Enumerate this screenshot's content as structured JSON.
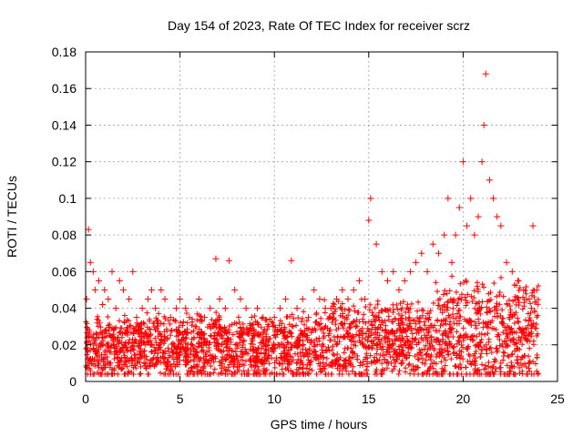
{
  "chart_data": {
    "type": "scatter",
    "title": "Day 154 of 2023, Rate Of TEC Index for receiver scrz",
    "xlabel": "GPS time / hours",
    "ylabel": "ROTI / TECUs",
    "xlim": [
      0,
      25
    ],
    "ylim": [
      0,
      0.18
    ],
    "xticks": [
      0,
      5,
      10,
      15,
      20,
      25
    ],
    "xtick_labels": [
      "0",
      "5",
      "10",
      "15",
      "20",
      "25"
    ],
    "yticks": [
      0,
      0.02,
      0.04,
      0.06,
      0.08,
      0.1,
      0.12,
      0.14,
      0.16,
      0.18
    ],
    "ytick_labels": [
      "0",
      "0.02",
      "0.04",
      "0.06",
      "0.08",
      "0.1",
      "0.12",
      "0.14",
      "0.16",
      "0.18"
    ],
    "grid": true,
    "marker": "+",
    "color": "#ff0000",
    "series": [
      {
        "name": "ROTI",
        "x": [
          0.05,
          0.15,
          0.25,
          0.4,
          0.5,
          0.7,
          0.9,
          1.0,
          1.2,
          1.4,
          1.6,
          1.8,
          2.0,
          2.3,
          2.5,
          2.7,
          3.0,
          3.3,
          3.5,
          3.7,
          4.0,
          4.2,
          4.5,
          4.8,
          5.0,
          5.3,
          5.5,
          5.8,
          6.0,
          6.3,
          6.6,
          6.9,
          7.1,
          7.4,
          7.6,
          7.9,
          8.2,
          8.5,
          8.8,
          9.1,
          9.4,
          9.7,
          10.0,
          10.3,
          10.6,
          10.9,
          11.2,
          11.5,
          11.8,
          12.1,
          12.4,
          12.7,
          13.0,
          13.3,
          13.6,
          13.9,
          14.2,
          14.5,
          14.8,
          15.0,
          15.1,
          15.4,
          15.7,
          16.0,
          16.3,
          16.6,
          16.9,
          17.2,
          17.5,
          17.8,
          18.1,
          18.4,
          18.7,
          19.0,
          19.2,
          19.4,
          19.6,
          19.8,
          20.0,
          20.2,
          20.4,
          20.6,
          20.8,
          21.0,
          21.1,
          21.2,
          21.4,
          21.6,
          21.8,
          22.0,
          22.3,
          22.6,
          22.9,
          23.2,
          23.5,
          23.7,
          23.9
        ],
        "y": [
          0.045,
          0.083,
          0.065,
          0.06,
          0.05,
          0.055,
          0.042,
          0.05,
          0.045,
          0.06,
          0.04,
          0.055,
          0.05,
          0.045,
          0.06,
          0.035,
          0.04,
          0.045,
          0.05,
          0.04,
          0.05,
          0.045,
          0.035,
          0.04,
          0.045,
          0.04,
          0.035,
          0.03,
          0.045,
          0.035,
          0.04,
          0.067,
          0.045,
          0.04,
          0.066,
          0.05,
          0.045,
          0.04,
          0.035,
          0.04,
          0.035,
          0.03,
          0.035,
          0.04,
          0.045,
          0.066,
          0.04,
          0.045,
          0.035,
          0.05,
          0.045,
          0.04,
          0.04,
          0.045,
          0.05,
          0.045,
          0.05,
          0.055,
          0.045,
          0.088,
          0.1,
          0.075,
          0.06,
          0.055,
          0.06,
          0.05,
          0.055,
          0.06,
          0.065,
          0.07,
          0.06,
          0.075,
          0.07,
          0.08,
          0.1,
          0.065,
          0.08,
          0.095,
          0.12,
          0.085,
          0.1,
          0.08,
          0.09,
          0.12,
          0.14,
          0.168,
          0.11,
          0.1,
          0.09,
          0.085,
          0.065,
          0.06,
          0.055,
          0.05,
          0.045,
          0.085,
          0.05
        ]
      }
    ]
  }
}
